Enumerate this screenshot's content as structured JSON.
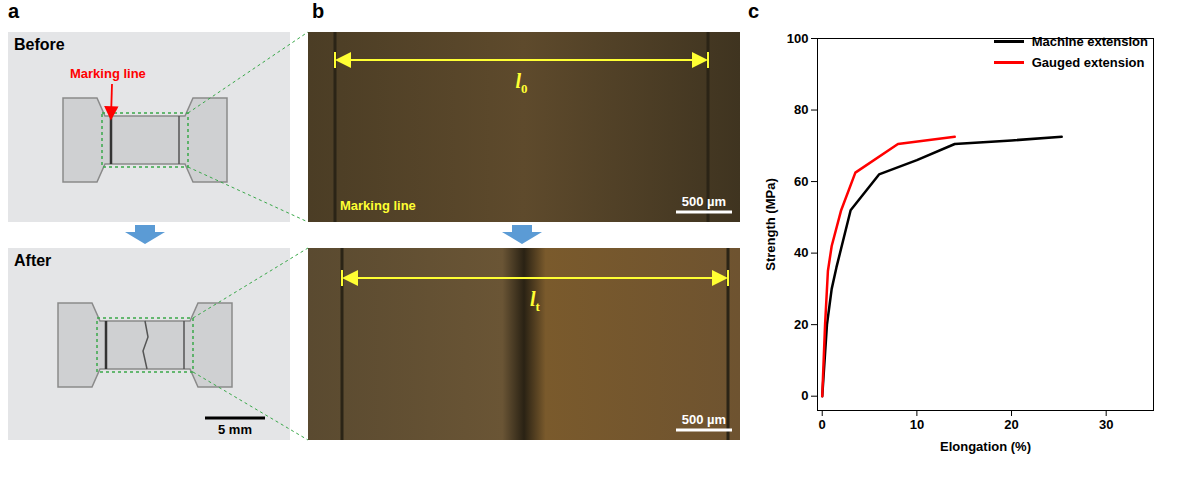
{
  "panels": {
    "a": {
      "letter": "a",
      "before": "Before",
      "marking_line": "Marking line",
      "after": "After",
      "scale_bar": "5 mm"
    },
    "b": {
      "letter": "b",
      "lengths": [
        {
          "symbol": "l",
          "subscript": "0"
        },
        {
          "symbol": "l",
          "subscript": "t"
        }
      ],
      "marking_line": "Marking line",
      "scale_bars": [
        "500 µm",
        "500 µm"
      ]
    },
    "c": {
      "letter": "c"
    }
  },
  "chart_data": {
    "type": "line",
    "x_label": "Elongation (%)",
    "y_label": "Strength (MPa)",
    "xlim": [
      -0.5,
      35
    ],
    "xticks": [
      0,
      10,
      20,
      30
    ],
    "ylim": [
      -4,
      100
    ],
    "yticks": [
      0,
      20,
      40,
      60,
      80,
      100
    ],
    "legend": "top-right",
    "series": [
      {
        "name": "Machine extension",
        "color": "#000000",
        "x": [
          0,
          0.5,
          1,
          1.5,
          3,
          6,
          10,
          14,
          20,
          25.3
        ],
        "values": [
          0,
          20,
          30,
          36,
          52,
          62,
          66,
          70.5,
          71.5,
          72.5
        ]
      },
      {
        "name": "Gauged extension",
        "color": "#ff0000",
        "x": [
          0,
          0.3,
          0.6,
          1,
          2,
          3.5,
          8,
          14
        ],
        "values": [
          0,
          20,
          35,
          42,
          52,
          62.5,
          70.5,
          72.5
        ]
      }
    ]
  }
}
